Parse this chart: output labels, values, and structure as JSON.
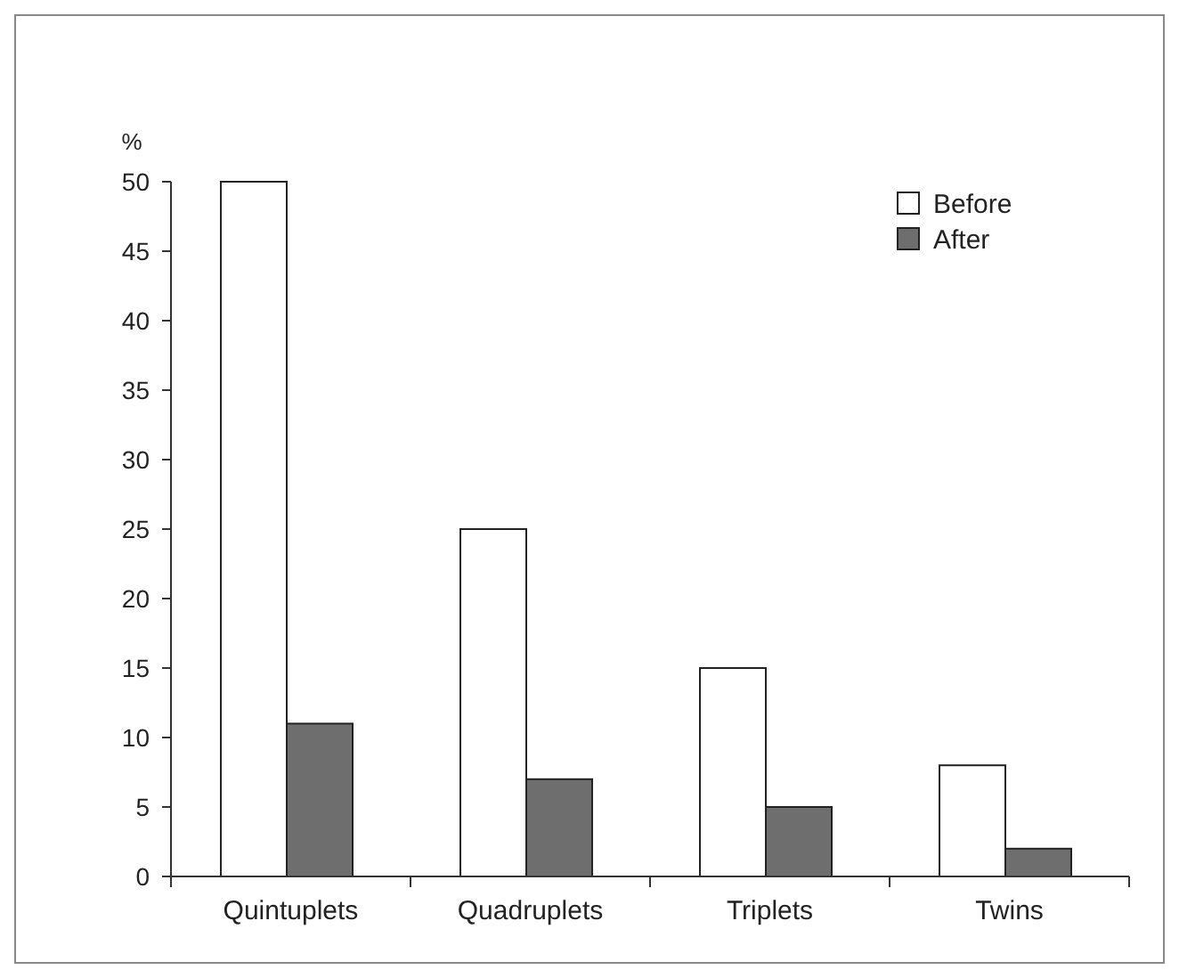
{
  "chart_data": {
    "type": "bar",
    "ylabel": "%",
    "categories": [
      "Quintuplets",
      "Quadruplets",
      "Triplets",
      "Twins"
    ],
    "series": [
      {
        "name": "Before",
        "color": "#ffffff",
        "values": [
          50,
          25,
          15,
          8
        ]
      },
      {
        "name": "After",
        "color": "#6e6e6e",
        "values": [
          11,
          7,
          5,
          2
        ]
      }
    ],
    "ylim": [
      0,
      50
    ],
    "yticks": [
      0,
      5,
      10,
      15,
      20,
      25,
      30,
      35,
      40,
      45,
      50
    ],
    "grid": false,
    "legend": "top right"
  }
}
